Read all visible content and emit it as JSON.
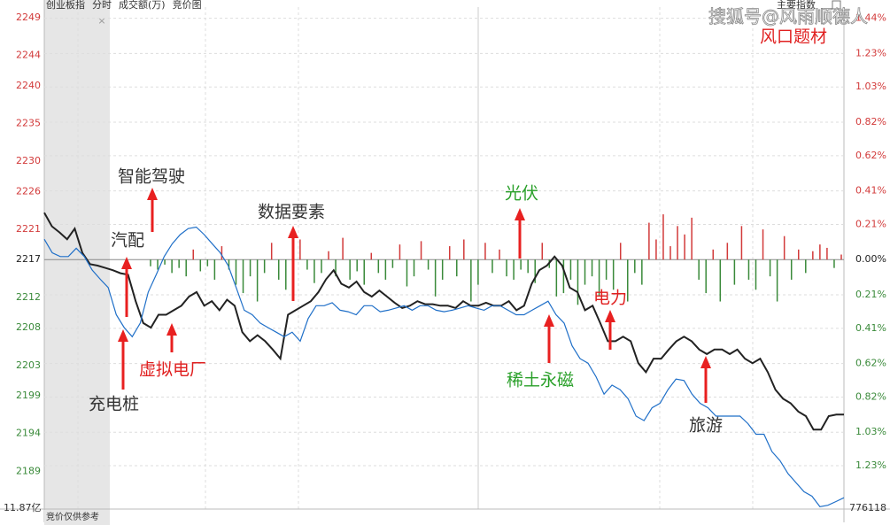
{
  "header": {
    "items": [
      "创业板指",
      "分时",
      "成交额(万)",
      "竞价图"
    ],
    "index_button": "主要指数"
  },
  "watermark": {
    "source": "搜狐号@风雨顺德人",
    "topic": "风口题材"
  },
  "footer": {
    "left": "11.87亿",
    "note": "竞价仅供参考",
    "right": "776118"
  },
  "chart_data": {
    "type": "line",
    "ylim": [
      2184,
      2250.4
    ],
    "yticks": [
      2249,
      2244,
      2240,
      2235,
      2230,
      2226,
      2221,
      2217,
      2212,
      2208,
      2203,
      2199,
      2194,
      2189
    ],
    "y2lim": [
      -1.4885,
      1.5065
    ],
    "y2ticks": [
      {
        "value": 1.44,
        "label": "1.44%"
      },
      {
        "value": 1.23,
        "label": "1.23%"
      },
      {
        "value": 1.03,
        "label": "1.03%"
      },
      {
        "value": 0.82,
        "label": "0.82%"
      },
      {
        "value": 0.62,
        "label": "0.62%"
      },
      {
        "value": 0.41,
        "label": "0.41%"
      },
      {
        "value": 0.21,
        "label": "0.21%"
      },
      {
        "value": 0,
        "label": "0.00%"
      },
      {
        "value": -0.21,
        "label": "0.21%"
      },
      {
        "value": -0.41,
        "label": "0.41%"
      },
      {
        "value": -0.62,
        "label": "0.62%"
      },
      {
        "value": -0.82,
        "label": "0.82%"
      },
      {
        "value": -1.03,
        "label": "1.03%"
      },
      {
        "value": -1.23,
        "label": "1.23%"
      }
    ],
    "up_color": "#d23a3a",
    "down_color": "#3a8a3a",
    "grid": true,
    "series": [
      {
        "color": "#222222",
        "values": [
          2223.2,
          2221.4,
          2220.6,
          2219.7,
          2221.1,
          2217.9,
          2216.4,
          2216.2,
          2215.9,
          2215.6,
          2215.2,
          2215.0,
          2211.5,
          2208.6,
          2208.0,
          2209.7,
          2209.7,
          2210.3,
          2210.9,
          2212.1,
          2212.7,
          2210.9,
          2211.5,
          2210.3,
          2211.7,
          2210.9,
          2207.4,
          2206.2,
          2207.0,
          2206.2,
          2205.1,
          2203.9,
          2209.7,
          2210.3,
          2210.9,
          2211.5,
          2212.7,
          2214.4,
          2215.6,
          2213.8,
          2213.3,
          2214.1,
          2212.7,
          2212.1,
          2212.9,
          2212.1,
          2211.3,
          2210.6,
          2210.9,
          2211.5,
          2211.1,
          2211.1,
          2210.9,
          2210.9,
          2210.6,
          2211.5,
          2210.9,
          2210.9,
          2211.3,
          2210.9,
          2210.9,
          2211.5,
          2210.3,
          2210.9,
          2213.8,
          2215.6,
          2216.2,
          2217.4,
          2216.2,
          2213.3,
          2212.7,
          2210.3,
          2210.9,
          2208.6,
          2206.2,
          2206.2,
          2206.8,
          2206.2,
          2203.3,
          2202.1,
          2203.9,
          2203.9,
          2205.1,
          2206.2,
          2206.8,
          2206.2,
          2205.1,
          2204.5,
          2205.1,
          2205.1,
          2204.5,
          2205.1,
          2203.9,
          2203.3,
          2203.9,
          2202.1,
          2199.8,
          2198.6,
          2198.0,
          2196.9,
          2196.3,
          2194.5,
          2194.5,
          2196.3,
          2196.5,
          2196.5
        ]
      },
      {
        "color": "#1f6fc8",
        "values": [
          2219.7,
          2217.9,
          2217.4,
          2217.4,
          2218.5,
          2217.4,
          2215.6,
          2214.4,
          2213.3,
          2209.7,
          2208.0,
          2206.8,
          2208.6,
          2212.7,
          2215.0,
          2217.4,
          2219.1,
          2220.3,
          2221.1,
          2221.3,
          2220.3,
          2219.1,
          2217.9,
          2216.2,
          2213.3,
          2210.3,
          2209.7,
          2208.6,
          2208.0,
          2207.4,
          2206.8,
          2207.4,
          2206.2,
          2209.2,
          2210.9,
          2210.9,
          2211.3,
          2210.3,
          2210.1,
          2209.7,
          2210.9,
          2210.9,
          2210.1,
          2210.3,
          2210.6,
          2210.9,
          2210.3,
          2210.9,
          2210.9,
          2210.3,
          2210.1,
          2210.3,
          2210.6,
          2210.9,
          2210.6,
          2210.3,
          2210.9,
          2210.9,
          2210.3,
          2209.7,
          2209.7,
          2210.3,
          2210.9,
          2211.5,
          2209.7,
          2208.6,
          2205.6,
          2203.9,
          2203.3,
          2201.5,
          2199.2,
          2200.4,
          2199.8,
          2198.6,
          2196.3,
          2195.7,
          2197.4,
          2198.0,
          2199.8,
          2201.2,
          2201.0,
          2199.2,
          2198.0,
          2197.4,
          2196.3,
          2196.3,
          2196.3,
          2196.3,
          2195.3,
          2193.9,
          2193.9,
          2191.6,
          2190.4,
          2188.7,
          2187.5,
          2186.3,
          2185.7,
          2184.3,
          2184.5,
          2185.0,
          2185.5
        ]
      },
      {
        "type": "bar",
        "axis": "y2",
        "values": [
          -0.04,
          -0.06,
          -0.03,
          -0.08,
          -0.05,
          -0.1,
          0.06,
          -0.07,
          -0.04,
          -0.12,
          0.08,
          -0.06,
          -0.15,
          -0.2,
          -0.1,
          -0.25,
          -0.08,
          0.1,
          -0.12,
          -0.18,
          -0.1,
          0.12,
          -0.06,
          -0.14,
          -0.08,
          0.05,
          -0.1,
          0.13,
          -0.12,
          -0.07,
          -0.15,
          0.04,
          -0.08,
          -0.12,
          -0.05,
          0.09,
          -0.16,
          -0.1,
          0.11,
          -0.06,
          -0.22,
          -0.12,
          0.08,
          -0.1,
          0.12,
          -0.25,
          -0.15,
          0.1,
          -0.08,
          0.06,
          -0.1,
          -0.12,
          -0.06,
          -0.08,
          -0.14,
          0.1,
          -0.05,
          -0.22,
          -0.2,
          -0.12,
          -0.27,
          -0.15,
          -0.1,
          -0.22,
          -0.12,
          -0.18,
          0.1,
          -0.25,
          -0.08,
          -0.15,
          0.22,
          0.12,
          0.27,
          0.08,
          0.2,
          0.15,
          0.25,
          -0.12,
          -0.2,
          0.06,
          -0.25,
          0.1,
          -0.15,
          0.2,
          -0.12,
          -0.18,
          0.18,
          -0.1,
          -0.25,
          0.14,
          -0.12,
          0.06,
          -0.08,
          0.05,
          0.09,
          0.07,
          -0.05,
          0.03
        ]
      }
    ],
    "annotations": [
      {
        "text": "智能驾驶",
        "color": "#333333"
      },
      {
        "text": "汽配",
        "color": "#333333"
      },
      {
        "text": "充电桩",
        "color": "#333333"
      },
      {
        "text": "虚拟电厂",
        "color": "#e02020"
      },
      {
        "text": "数据要素",
        "color": "#333333"
      },
      {
        "text": "光伏",
        "color": "#2aa02a"
      },
      {
        "text": "稀土永磁",
        "color": "#2aa02a"
      },
      {
        "text": "电力",
        "color": "#e02020"
      },
      {
        "text": "旅游",
        "color": "#333333"
      }
    ]
  }
}
